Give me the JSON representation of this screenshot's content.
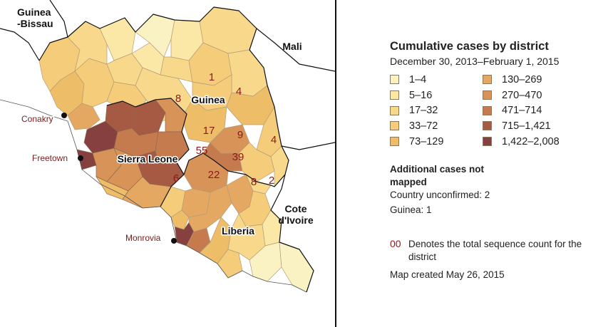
{
  "map": {
    "labels": {
      "guinea_bissau": "Guinea\n-Bissau",
      "mali": "Mali",
      "guinea": "Guinea",
      "sierra_leone": "Sierra Leone",
      "liberia": "Liberia",
      "cote_divoire": "Cote\nd'Ivoire"
    },
    "cities": {
      "conakry": "Conakry",
      "freetown": "Freetown",
      "monrovia": "Monrovia"
    },
    "sequence_counts": [
      "1",
      "8",
      "4",
      "17",
      "9",
      "4",
      "55",
      "39",
      "6",
      "22",
      "8",
      "2"
    ],
    "colors": {
      "sea": "#ffffff",
      "outside_land": "#ffffff",
      "border": "#111111",
      "sequence_count_text": "#8b1a1a",
      "city_label": "#7a1c1c"
    }
  },
  "legend": {
    "title": "Cumulative cases by district",
    "subtitle": "December 30, 2013–February 1, 2015",
    "bins_left": [
      {
        "label": "1–4",
        "color": "#fbf2c4"
      },
      {
        "label": "5–16",
        "color": "#fbe7a6"
      },
      {
        "label": "17–32",
        "color": "#f8d98c"
      },
      {
        "label": "33–72",
        "color": "#f5cc79"
      },
      {
        "label": "73–129",
        "color": "#eebd68"
      }
    ],
    "bins_right": [
      {
        "label": "130–269",
        "color": "#e4a863"
      },
      {
        "label": "270–470",
        "color": "#d89359"
      },
      {
        "label": "471–714",
        "color": "#c67b4f"
      },
      {
        "label": "715–1,421",
        "color": "#a65a44"
      },
      {
        "label": "1,422–2,008",
        "color": "#874040"
      }
    ],
    "unmapped_heading": "Additional cases not mapped",
    "unmapped_country": "Country unconfirmed: 2",
    "unmapped_guinea": "Guinea: 1",
    "note_code": "00",
    "note_text": "Denotes the total sequence count for the district",
    "created": "Map created May 26, 2015"
  }
}
